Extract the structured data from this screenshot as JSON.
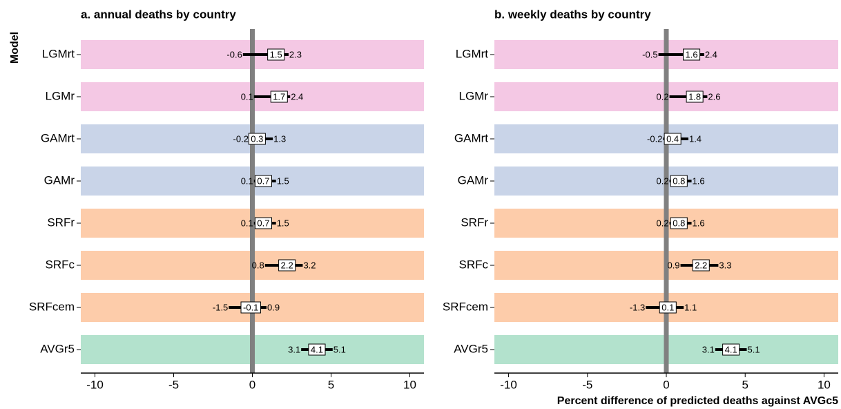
{
  "chart_data": [
    {
      "type": "forest",
      "title": "a. annual deaths by country",
      "ylabel": "Model",
      "categories": [
        "LGMrt",
        "LGMr",
        "GAMrt",
        "GAMr",
        "SRFr",
        "SRFc",
        "SRFcem",
        "AVGr5"
      ],
      "values": [
        1.5,
        1.7,
        0.3,
        0.7,
        0.7,
        2.2,
        -0.1,
        4.1
      ],
      "lower": [
        -0.6,
        0.1,
        -0.2,
        0.1,
        0.1,
        0.8,
        -1.5,
        3.1
      ],
      "upper": [
        2.3,
        2.4,
        1.3,
        1.5,
        1.5,
        3.2,
        0.9,
        5.1
      ],
      "colors": [
        "#f4c8e4",
        "#f4c8e4",
        "#c9d4e8",
        "#c9d4e8",
        "#fdccaa",
        "#fdccaa",
        "#fdccaa",
        "#b3e2cd"
      ],
      "refline": 0,
      "xlim": [
        -10.9,
        10.9
      ],
      "xticks": [
        -10,
        -5,
        0,
        5,
        10
      ]
    },
    {
      "type": "forest",
      "title": "b. weekly deaths by country",
      "xlabel": "Percent difference of predicted deaths against AVGc5",
      "categories": [
        "LGMrt",
        "LGMr",
        "GAMrt",
        "GAMr",
        "SRFr",
        "SRFc",
        "SRFcem",
        "AVGr5"
      ],
      "values": [
        1.6,
        1.8,
        0.4,
        0.8,
        0.8,
        2.2,
        0.1,
        4.1
      ],
      "lower": [
        -0.5,
        0.2,
        -0.2,
        0.2,
        0.2,
        0.9,
        -1.3,
        3.1
      ],
      "upper": [
        2.4,
        2.6,
        1.4,
        1.6,
        1.6,
        3.3,
        1.1,
        5.1
      ],
      "colors": [
        "#f4c8e4",
        "#f4c8e4",
        "#c9d4e8",
        "#c9d4e8",
        "#fdccaa",
        "#fdccaa",
        "#fdccaa",
        "#b3e2cd"
      ],
      "refline": 0,
      "xlim": [
        -10.9,
        10.9
      ],
      "xticks": [
        -10,
        -5,
        0,
        5,
        10
      ]
    }
  ]
}
